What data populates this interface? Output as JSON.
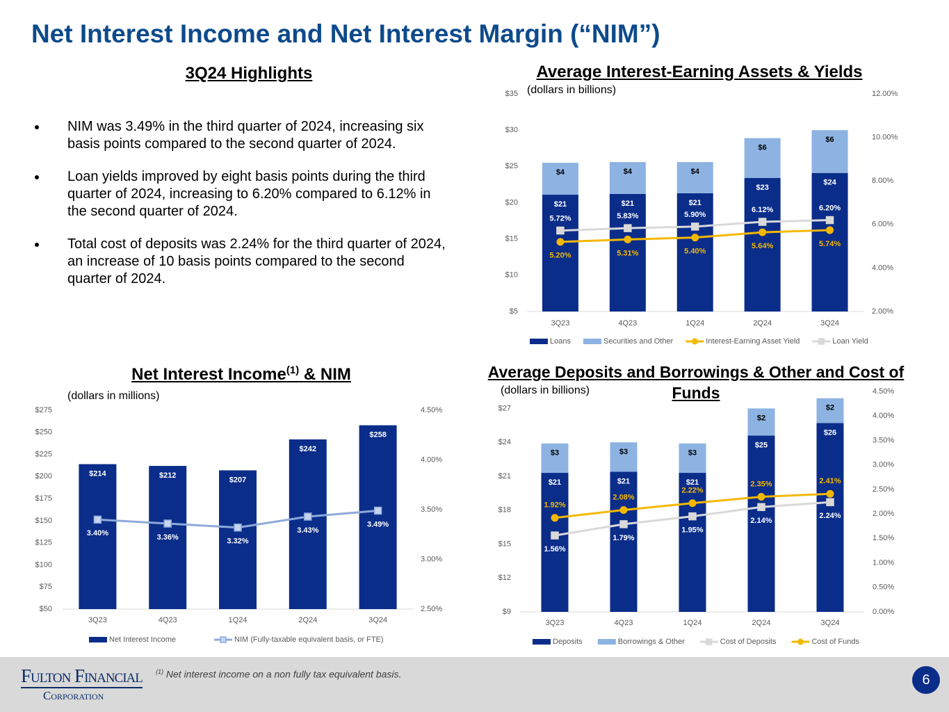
{
  "title": "Net Interest Income and Net Interest Margin (“NIM”)",
  "highlights": {
    "title": "3Q24 Highlights",
    "bullets": [
      "NIM was 3.49% in the third quarter of 2024, increasing six basis points compared to the second quarter of 2024.",
      "Loan yields improved by eight basis points during the third quarter of 2024, increasing to 6.20% compared to 6.12% in the second quarter of 2024.",
      "Total cost of deposits was 2.24% for the third quarter of 2024, an increase of 10 basis points compared to the second quarter of 2024."
    ]
  },
  "chart_data": [
    {
      "type": "bar",
      "title": "Average Interest-Earning Assets & Yields",
      "subtitle": "(dollars in billions)",
      "categories": [
        "3Q23",
        "4Q23",
        "1Q24",
        "2Q24",
        "3Q24"
      ],
      "ylim": [
        5,
        35
      ],
      "yticks": [
        {
          "value": 5,
          "label": "$5"
        },
        {
          "value": 10,
          "label": "$10"
        },
        {
          "value": 15,
          "label": "$15"
        },
        {
          "value": 20,
          "label": "$20"
        },
        {
          "value": 25,
          "label": "$25"
        },
        {
          "value": 30,
          "label": "$30"
        },
        {
          "value": 35,
          "label": "$35"
        }
      ],
      "y2lim": [
        2,
        12
      ],
      "y2ticks": [
        {
          "value": 2,
          "label": "2.00%"
        },
        {
          "value": 4,
          "label": "4.00%"
        },
        {
          "value": 6,
          "label": "6.00%"
        },
        {
          "value": 8,
          "label": "8.00%"
        },
        {
          "value": 10,
          "label": "10.00%"
        },
        {
          "value": 12,
          "label": "12.00%"
        }
      ],
      "series": [
        {
          "name": "Loans",
          "color": "#0b2d8a",
          "values": [
            21.1,
            21.2,
            21.3,
            23.4,
            24.1
          ],
          "value_labels": [
            "$21",
            "$21",
            "$21",
            "$23",
            "$24"
          ]
        },
        {
          "name": "Securities and Other",
          "color": "#8db3e2",
          "values": [
            4.4,
            4.4,
            4.3,
            5.5,
            5.9
          ],
          "value_labels": [
            "$4",
            "$4",
            "$4",
            "$6",
            "$6"
          ]
        },
        {
          "name": "Interest-Earning Asset Yield",
          "type": "line",
          "axis": "y2",
          "marker": "circle",
          "color": "#f5b800",
          "values": [
            5.2,
            5.31,
            5.4,
            5.64,
            5.74
          ],
          "value_labels": [
            "5.20%",
            "5.31%",
            "5.40%",
            "5.64%",
            "5.74%"
          ]
        },
        {
          "name": "Loan Yield",
          "type": "line",
          "axis": "y2",
          "marker": "square",
          "color": "#d9d9d9",
          "values": [
            5.72,
            5.83,
            5.9,
            6.12,
            6.2
          ],
          "value_labels": [
            "5.72%",
            "5.83%",
            "5.90%",
            "6.12%",
            "6.20%"
          ]
        }
      ]
    },
    {
      "type": "bar",
      "title": "Net Interest Income",
      "title_note": "(1)",
      "title_suffix": "& NIM",
      "subtitle": "(dollars in millions)",
      "categories": [
        "3Q23",
        "4Q23",
        "1Q24",
        "2Q24",
        "3Q24"
      ],
      "ylim": [
        50,
        275
      ],
      "yticks": [
        {
          "value": 50,
          "label": "$50"
        },
        {
          "value": 75,
          "label": "$75"
        },
        {
          "value": 100,
          "label": "$100"
        },
        {
          "value": 125,
          "label": "$125"
        },
        {
          "value": 150,
          "label": "$150"
        },
        {
          "value": 175,
          "label": "$175"
        },
        {
          "value": 200,
          "label": "$200"
        },
        {
          "value": 225,
          "label": "$225"
        },
        {
          "value": 250,
          "label": "$250"
        },
        {
          "value": 275,
          "label": "$275"
        }
      ],
      "y2lim": [
        2.5,
        4.5
      ],
      "y2ticks": [
        {
          "value": 2.5,
          "label": "2.50%"
        },
        {
          "value": 3,
          "label": "3.00%"
        },
        {
          "value": 3.5,
          "label": "3.50%"
        },
        {
          "value": 4,
          "label": "4.00%"
        },
        {
          "value": 4.5,
          "label": "4.50%"
        }
      ],
      "series": [
        {
          "name": "Net Interest Income",
          "color": "#0b2d8a",
          "values": [
            214,
            212,
            207,
            242,
            258
          ],
          "value_labels": [
            "$214",
            "$212",
            "$207",
            "$242",
            "$258"
          ]
        },
        {
          "name": "NIM (Fully-taxable equivalent basis, or FTE)",
          "type": "line",
          "axis": "y2",
          "marker": "square",
          "color": "#8eaadb",
          "values": [
            3.4,
            3.36,
            3.32,
            3.43,
            3.49
          ],
          "value_labels": [
            "3.40%",
            "3.36%",
            "3.32%",
            "3.43%",
            "3.49%"
          ]
        }
      ]
    },
    {
      "type": "bar",
      "title": "Average Deposits and Borrowings & Other and Cost of Funds",
      "subtitle": "(dollars in billions)",
      "categories": [
        "3Q23",
        "4Q23",
        "1Q24",
        "2Q24",
        "3Q24"
      ],
      "ylim": [
        9,
        28.5
      ],
      "yticks": [
        {
          "value": 9,
          "label": "$9"
        },
        {
          "value": 12,
          "label": "$12"
        },
        {
          "value": 15,
          "label": "$15"
        },
        {
          "value": 18,
          "label": "$18"
        },
        {
          "value": 21,
          "label": "$21"
        },
        {
          "value": 24,
          "label": "$24"
        },
        {
          "value": 27,
          "label": "$27"
        }
      ],
      "y2lim": [
        0,
        4.5
      ],
      "y2ticks": [
        {
          "value": 0,
          "label": "0.00%"
        },
        {
          "value": 0.5,
          "label": "0.50%"
        },
        {
          "value": 1,
          "label": "1.00%"
        },
        {
          "value": 1.5,
          "label": "1.50%"
        },
        {
          "value": 2,
          "label": "2.00%"
        },
        {
          "value": 2.5,
          "label": "2.50%"
        },
        {
          "value": 3,
          "label": "3.00%"
        },
        {
          "value": 3.5,
          "label": "3.50%"
        },
        {
          "value": 4,
          "label": "4.00%"
        },
        {
          "value": 4.5,
          "label": "4.50%"
        }
      ],
      "series": [
        {
          "name": "Deposits",
          "color": "#0b2d8a",
          "values": [
            21.3,
            21.4,
            21.3,
            24.6,
            25.7
          ],
          "value_labels": [
            "$21",
            "$21",
            "$21",
            "$25",
            "$26"
          ]
        },
        {
          "name": "Borrowings & Other",
          "color": "#8db3e2",
          "values": [
            2.6,
            2.6,
            2.6,
            2.4,
            2.2
          ],
          "value_labels": [
            "$3",
            "$3",
            "$3",
            "$2",
            "$2"
          ]
        },
        {
          "name": "Cost of Deposits",
          "type": "line",
          "axis": "y2",
          "marker": "square",
          "color": "#d9d9d9",
          "values": [
            1.56,
            1.79,
            1.95,
            2.14,
            2.24
          ],
          "value_labels": [
            "1.56%",
            "1.79%",
            "1.95%",
            "2.14%",
            "2.24%"
          ]
        },
        {
          "name": "Cost of Funds",
          "type": "line",
          "axis": "y2",
          "marker": "circle",
          "color": "#f5b800",
          "values": [
            1.92,
            2.08,
            2.22,
            2.35,
            2.41
          ],
          "value_labels": [
            "1.92%",
            "2.08%",
            "2.22%",
            "2.35%",
            "2.41%"
          ]
        }
      ]
    }
  ],
  "footer": {
    "note_mark": "(1)",
    "note": "Net interest income on a non fully tax equivalent basis.",
    "logo": [
      "Fulton Financial",
      "Corporation"
    ],
    "page": 6
  }
}
